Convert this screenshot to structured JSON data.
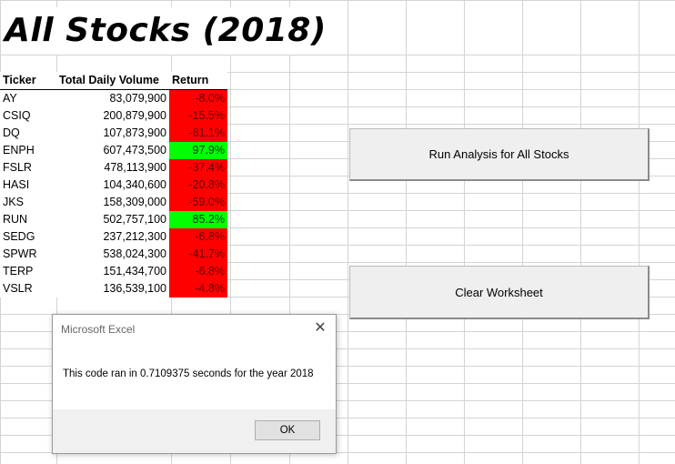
{
  "sheet": {
    "title": "All Stocks (2018)"
  },
  "table": {
    "headers": [
      "Ticker",
      "Total Daily Volume",
      "Return"
    ],
    "rows": [
      {
        "ticker": "AY",
        "volume": "83,079,900",
        "return": "-8.0%",
        "status": "negative"
      },
      {
        "ticker": "CSIQ",
        "volume": "200,879,900",
        "return": "-15.5%",
        "status": "negative"
      },
      {
        "ticker": "DQ",
        "volume": "107,873,900",
        "return": "-61.1%",
        "status": "negative"
      },
      {
        "ticker": "ENPH",
        "volume": "607,473,500",
        "return": "97.9%",
        "status": "positive"
      },
      {
        "ticker": "FSLR",
        "volume": "478,113,900",
        "return": "-37.4%",
        "status": "negative"
      },
      {
        "ticker": "HASI",
        "volume": "104,340,600",
        "return": "-20.8%",
        "status": "negative"
      },
      {
        "ticker": "JKS",
        "volume": "158,309,000",
        "return": "-59.0%",
        "status": "negative"
      },
      {
        "ticker": "RUN",
        "volume": "502,757,100",
        "return": "85.2%",
        "status": "positive"
      },
      {
        "ticker": "SEDG",
        "volume": "237,212,300",
        "return": "-6.8%",
        "status": "negative"
      },
      {
        "ticker": "SPWR",
        "volume": "538,024,300",
        "return": "-41.7%",
        "status": "negative"
      },
      {
        "ticker": "TERP",
        "volume": "151,434,700",
        "return": "-6.8%",
        "status": "negative"
      },
      {
        "ticker": "VSLR",
        "volume": "136,539,100",
        "return": "-4.8%",
        "status": "negative"
      }
    ]
  },
  "buttons": {
    "run_label": "Run Analysis for All Stocks",
    "clear_label": "Clear Worksheet"
  },
  "dialog": {
    "title": "Microsoft Excel",
    "message": "This code ran in 0.7109375 seconds for the year 2018",
    "ok_label": "OK",
    "close_icon": "close-icon"
  },
  "colors": {
    "negative": "#ff0000",
    "positive": "#00ff00"
  }
}
